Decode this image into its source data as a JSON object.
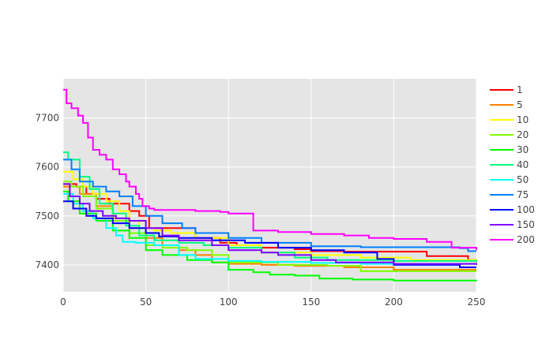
{
  "chart_data": {
    "type": "line",
    "title": "",
    "xlabel": "",
    "ylabel": "",
    "xlim": [
      0,
      250
    ],
    "ylim": [
      7345,
      7780
    ],
    "x_ticks": [
      0,
      50,
      100,
      150,
      200,
      250
    ],
    "y_ticks": [
      7400,
      7500,
      7600,
      7700
    ],
    "grid": true,
    "legend_position": "right",
    "plot_background": "#e5e5e5",
    "series": [
      {
        "name": "1",
        "color": "#ff0000",
        "x": [
          0,
          2,
          8,
          14,
          20,
          28,
          40,
          46,
          52,
          80,
          95,
          105,
          120,
          140,
          150,
          170,
          200,
          210,
          220,
          240,
          245,
          250
        ],
        "y": [
          7565,
          7565,
          7560,
          7545,
          7535,
          7525,
          7510,
          7500,
          7475,
          7455,
          7445,
          7440,
          7435,
          7432,
          7428,
          7427,
          7427,
          7427,
          7418,
          7418,
          7410,
          7410
        ]
      },
      {
        "name": "5",
        "color": "#ff8000",
        "x": [
          0,
          10,
          20,
          30,
          40,
          50,
          60,
          70,
          80,
          90,
          100,
          120,
          140,
          170,
          200,
          250
        ],
        "y": [
          7560,
          7545,
          7520,
          7495,
          7475,
          7455,
          7440,
          7430,
          7420,
          7405,
          7402,
          7400,
          7398,
          7395,
          7390,
          7390
        ]
      },
      {
        "name": "10",
        "color": "#ffff00",
        "x": [
          0,
          6,
          12,
          18,
          26,
          34,
          40,
          46,
          55,
          65,
          80,
          100,
          120,
          150,
          180,
          210,
          250
        ],
        "y": [
          7590,
          7575,
          7560,
          7545,
          7530,
          7510,
          7490,
          7475,
          7470,
          7465,
          7455,
          7440,
          7425,
          7420,
          7415,
          7410,
          7405
        ]
      },
      {
        "name": "20",
        "color": "#80ff00",
        "x": [
          0,
          5,
          12,
          20,
          30,
          40,
          50,
          60,
          75,
          90,
          100,
          130,
          160,
          180,
          200,
          250
        ],
        "y": [
          7570,
          7560,
          7540,
          7515,
          7490,
          7465,
          7440,
          7435,
          7430,
          7420,
          7405,
          7400,
          7398,
          7387,
          7387,
          7387
        ]
      },
      {
        "name": "30",
        "color": "#00ff00",
        "x": [
          0,
          3,
          10,
          20,
          30,
          40,
          50,
          60,
          75,
          90,
          100,
          115,
          125,
          140,
          155,
          175,
          200,
          250
        ],
        "y": [
          7550,
          7530,
          7505,
          7490,
          7470,
          7455,
          7430,
          7420,
          7410,
          7405,
          7390,
          7385,
          7380,
          7378,
          7372,
          7370,
          7368,
          7367
        ]
      },
      {
        "name": "40",
        "color": "#00ff80",
        "x": [
          0,
          3,
          10,
          16,
          22,
          30,
          38,
          46,
          55,
          70,
          85,
          100,
          120,
          140,
          160,
          200,
          250
        ],
        "y": [
          7630,
          7615,
          7580,
          7555,
          7525,
          7505,
          7480,
          7460,
          7450,
          7445,
          7440,
          7435,
          7425,
          7415,
          7410,
          7408,
          7405
        ]
      },
      {
        "name": "50",
        "color": "#00ffff",
        "x": [
          0,
          6,
          12,
          18,
          26,
          32,
          36,
          44,
          55,
          70,
          80,
          100,
          120,
          150,
          180,
          250
        ],
        "y": [
          7545,
          7525,
          7510,
          7495,
          7475,
          7460,
          7447,
          7445,
          7440,
          7420,
          7412,
          7408,
          7406,
          7404,
          7402,
          7400
        ]
      },
      {
        "name": "75",
        "color": "#0080ff",
        "x": [
          0,
          5,
          10,
          18,
          26,
          34,
          42,
          50,
          60,
          72,
          80,
          100,
          120,
          150,
          180,
          240,
          245,
          250
        ],
        "y": [
          7615,
          7595,
          7570,
          7560,
          7550,
          7540,
          7520,
          7500,
          7485,
          7475,
          7465,
          7455,
          7445,
          7438,
          7436,
          7434,
          7428,
          7428
        ]
      },
      {
        "name": "100",
        "color": "#0000ff",
        "x": [
          0,
          6,
          14,
          20,
          30,
          40,
          50,
          58,
          70,
          90,
          110,
          130,
          150,
          170,
          190,
          200,
          240,
          250
        ],
        "y": [
          7530,
          7515,
          7500,
          7495,
          7485,
          7475,
          7465,
          7458,
          7455,
          7450,
          7445,
          7435,
          7430,
          7425,
          7412,
          7400,
          7395,
          7395
        ]
      },
      {
        "name": "150",
        "color": "#8000ff",
        "x": [
          0,
          4,
          10,
          16,
          24,
          32,
          40,
          50,
          60,
          70,
          90,
          100,
          120,
          130,
          150,
          165,
          200,
          250
        ],
        "y": [
          7565,
          7540,
          7525,
          7510,
          7500,
          7495,
          7490,
          7475,
          7460,
          7450,
          7440,
          7430,
          7425,
          7420,
          7410,
          7405,
          7402,
          7400
        ]
      },
      {
        "name": "200",
        "color": "#ff00ff",
        "x": [
          0,
          2,
          5,
          9,
          12,
          15,
          18,
          22,
          26,
          30,
          34,
          38,
          40,
          44,
          46,
          48,
          52,
          55,
          60,
          80,
          95,
          100,
          115,
          130,
          150,
          170,
          185,
          200,
          220,
          235,
          250
        ],
        "y": [
          7758,
          7730,
          7720,
          7705,
          7690,
          7660,
          7635,
          7625,
          7615,
          7595,
          7585,
          7570,
          7560,
          7545,
          7535,
          7520,
          7515,
          7512,
          7512,
          7510,
          7508,
          7505,
          7470,
          7467,
          7463,
          7460,
          7455,
          7453,
          7447,
          7435,
          7430
        ]
      }
    ]
  }
}
